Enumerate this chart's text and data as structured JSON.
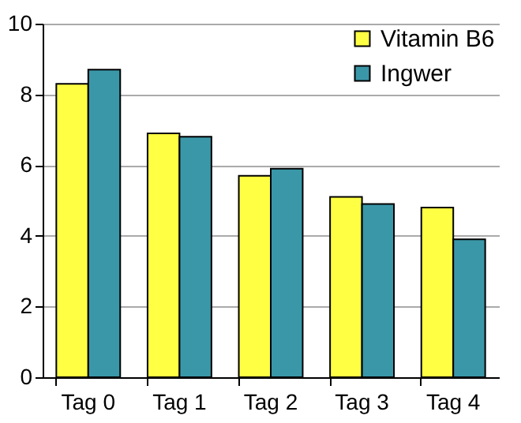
{
  "chart_data": {
    "type": "bar",
    "categories": [
      "Tag 0",
      "Tag 1",
      "Tag 2",
      "Tag 3",
      "Tag 4"
    ],
    "series": [
      {
        "name": "Vitamin B6",
        "color": "#ffff44",
        "values": [
          8.3,
          6.9,
          5.7,
          5.1,
          4.8
        ]
      },
      {
        "name": "Ingwer",
        "color": "#3a97a8",
        "values": [
          8.7,
          6.8,
          5.9,
          4.9,
          3.9
        ]
      }
    ],
    "ylim": [
      0,
      10
    ],
    "yticks": [
      0,
      2,
      4,
      6,
      8,
      10
    ],
    "grid": "y",
    "legend": "top right"
  }
}
